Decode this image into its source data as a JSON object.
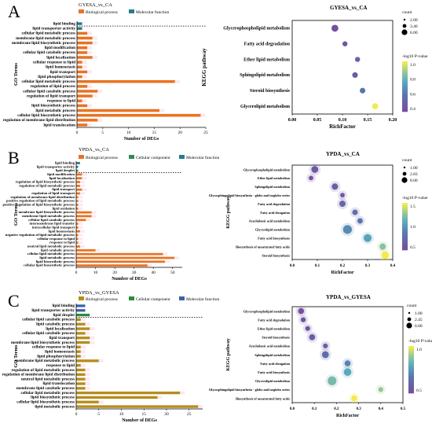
{
  "panels": [
    {
      "letter": "A",
      "go": {
        "title": "GYESA_vs_CA",
        "ylabel": "GO Terms",
        "xlabel": "Number of DEGs",
        "legend": [
          {
            "name": "Biological process",
            "color": "#E8731F"
          },
          {
            "name": "Molecular function",
            "color": "#2A7A8C"
          }
        ],
        "xlim": [
          0,
          25
        ],
        "xticks": [
          0,
          5,
          10,
          15,
          20,
          25
        ],
        "dashed_after": 1
      },
      "kegg": {
        "title": "GYESA_vs_CA",
        "xlabel": "RichFactor",
        "ylabel": "KEGG pathway",
        "xlim": [
          0,
          0.2
        ],
        "xticks": [
          "0.00",
          "0.05",
          "0.10",
          "0.15",
          "0.20"
        ],
        "count_title": "count",
        "count_levels": [
          "2.00",
          "3.46",
          "6.00"
        ],
        "pval_title": "-log10 P-value",
        "pval_ticks": [
          "1.0",
          "0.8",
          "0.6",
          "0.4"
        ]
      }
    },
    {
      "letter": "B",
      "go": {
        "title": "YPDA_vs_CA",
        "ylabel": "GO Terms",
        "xlabel": "Number of DEGs",
        "legend": [
          {
            "name": "Biological process",
            "color": "#E8731F"
          },
          {
            "name": "Cellular component",
            "color": "#2C8C5A"
          },
          {
            "name": "Molecular function",
            "color": "#2A7A8C"
          }
        ],
        "xlim": [
          0,
          55
        ],
        "xticks": [
          0,
          10,
          20,
          30,
          40,
          50
        ],
        "dashed_after": 3
      },
      "kegg": {
        "title": "YPDA_vs_CA",
        "xlabel": "RichFactor",
        "ylabel": "KEGG pathway",
        "xlim": [
          0,
          0.4
        ],
        "xticks": [
          "0.0",
          "0.1",
          "0.2",
          "0.3",
          "0.4"
        ],
        "count_title": "count",
        "count_levels": [
          "1.00",
          "2.83",
          "8.00"
        ],
        "pval_title": "-log10 P-value",
        "pval_ticks": [
          "1.5",
          "1.0",
          "0.5"
        ]
      }
    },
    {
      "letter": "C",
      "go": {
        "title": "YPDA_vs_GYESA",
        "ylabel": "GO Terms",
        "xlabel": "Number of DEGs",
        "legend": [
          {
            "name": "Biological process",
            "color": "#B38E1A"
          },
          {
            "name": "Cellular component",
            "color": "#2C8C3A"
          },
          {
            "name": "Molecular function",
            "color": "#3A62A8"
          }
        ],
        "xlim": [
          0,
          28
        ],
        "xticks": [
          0,
          5,
          10,
          15,
          20,
          25
        ],
        "dashed_after": 3
      },
      "kegg": {
        "title": "YPDA_vs_GYESA",
        "xlabel": "RichFactor",
        "ylabel": "KEGG pathway",
        "xlim": [
          0,
          0.5
        ],
        "xticks": [
          "0.0",
          "0.1",
          "0.2",
          "0.3",
          "0.4",
          "0.5"
        ],
        "count_title": "count",
        "count_levels": [
          "1.00",
          "2.45",
          "6.00"
        ],
        "pval_title": "-log10 P-value",
        "pval_ticks": [
          "1.0",
          "0.5"
        ]
      }
    }
  ],
  "chart_data": [
    {
      "type": "bar",
      "title": "GYESA_vs_CA",
      "xlabel": "Number of DEGs",
      "ylabel": "GO Terms",
      "xlim": [
        0,
        25
      ],
      "categories": [
        "lipid binding",
        "lipid transporter activity",
        "cellular lipid metabolic process",
        "membrane lipid metabolic process",
        "membrane lipid biosynthetic process",
        "lipid modification",
        "cellular lipid catabolic process",
        "lipid localization",
        "cellular response to lipid",
        "lipid homeostasis",
        "lipid transport",
        "lipid phosphorylation",
        "cellular lipid metabolic process",
        "regulation of lipid process",
        "cellular lipid catabolic process",
        "regulation of lipid transport",
        "response to lipid",
        "lipid biosynthetic process",
        "lipid metabolic process",
        "cellular lipid biosynthetic process",
        "regulation of membrane lipid distribution",
        "lipid translocation"
      ],
      "values": [
        1,
        1,
        2,
        3,
        3,
        2,
        2,
        3,
        1,
        1,
        2,
        1,
        19,
        2,
        4,
        3,
        1,
        2,
        16,
        24,
        4,
        2
      ],
      "groups": [
        "Molecular function",
        "Molecular function",
        "Biological process",
        "Biological process",
        "Biological process",
        "Biological process",
        "Biological process",
        "Biological process",
        "Biological process",
        "Biological process",
        "Biological process",
        "Biological process",
        "Biological process",
        "Biological process",
        "Biological process",
        "Biological process",
        "Biological process",
        "Biological process",
        "Biological process",
        "Biological process",
        "Biological process",
        "Biological process"
      ]
    },
    {
      "type": "scatter",
      "title": "GYESA_vs_CA",
      "xlabel": "RichFactor",
      "ylabel": "KEGG pathway",
      "xlim": [
        0,
        0.2
      ],
      "categories": [
        "Glycerophospholipid metabolism",
        "Fatty acid degradation",
        "Ether lipid metabolism",
        "Sphingolipid metabolism",
        "Steroid biosynthesis",
        "Glycerolipid metabolism"
      ],
      "x": [
        0.085,
        0.105,
        0.13,
        0.125,
        0.14,
        0.165
      ],
      "count": [
        6,
        2,
        2,
        3,
        3,
        4
      ],
      "neg_log10_p": [
        0.3,
        0.35,
        0.45,
        0.4,
        0.6,
        1.2
      ]
    },
    {
      "type": "bar",
      "title": "YPDA_vs_CA",
      "xlabel": "Number of DEGs",
      "ylabel": "GO Terms",
      "xlim": [
        0,
        55
      ],
      "categories": [
        "lipid binding",
        "lipid transporter activity",
        "lipid droplet",
        "lipid modification",
        "lipid localization",
        "regulation of lipid biosynthetic process",
        "regulation of lipid metabolic process",
        "lipid transport",
        "regulation of lipid transport",
        "regulation of membrane lipid distribution",
        "positive regulation of lipid metabolic process",
        "positive regulation of lipid biosynthetic process",
        "lipid oxidation",
        "membrane lipid biosynthetic process",
        "membrane lipid metabolic process",
        "cellular lipid catabolic process",
        "intermembrane lipid transfer",
        "intracellular lipid transport",
        "lipid homeostasis",
        "negative regulation of lipid metabolic process",
        "cellular response to lipid",
        "response to lipid",
        "neutral lipid metabolic process",
        "lipid catabolic process",
        "cellular lipid metabolic process",
        "lipid metabolic process",
        "lipid biosynthetic process",
        "cellular lipid biosynthetic process"
      ],
      "values": [
        2,
        1,
        1,
        3,
        3,
        2,
        2,
        3,
        2,
        1,
        1,
        1,
        1,
        8,
        8,
        5,
        1,
        1,
        2,
        1,
        1,
        1,
        2,
        10,
        45,
        51,
        46,
        37
      ],
      "groups": [
        "Molecular function",
        "Molecular function",
        "Cellular component",
        "Biological process",
        "Biological process",
        "Biological process",
        "Biological process",
        "Biological process",
        "Biological process",
        "Biological process",
        "Biological process",
        "Biological process",
        "Biological process",
        "Biological process",
        "Biological process",
        "Biological process",
        "Biological process",
        "Biological process",
        "Biological process",
        "Biological process",
        "Biological process",
        "Biological process",
        "Biological process",
        "Biological process",
        "Biological process",
        "Biological process",
        "Biological process",
        "Biological process"
      ]
    },
    {
      "type": "scatter",
      "title": "YPDA_vs_CA",
      "xlabel": "RichFactor",
      "ylabel": "KEGG pathway",
      "xlim": [
        0,
        0.4
      ],
      "categories": [
        "Glycerophospholipid metabolism",
        "Ether lipid metabolism",
        "Sphingolipid metabolism",
        "Glycosphingolipid biosynthesis - globo and isoglobo series",
        "Fatty acid degradation",
        "Fatty acid elongation",
        "Arachidonic acid metabolism",
        "Glycerolipid metabolism",
        "Fatty acid biosynthesis",
        "Biosynthesis of unsaturated fatty acids",
        "Steroid biosynthesis"
      ],
      "x": [
        0.09,
        0.075,
        0.17,
        0.2,
        0.2,
        0.25,
        0.27,
        0.22,
        0.3,
        0.36,
        0.37
      ],
      "count": [
        4,
        1,
        3,
        1,
        3,
        2,
        2,
        8,
        6,
        3,
        5
      ],
      "neg_log10_p": [
        0.2,
        0.1,
        0.3,
        0.2,
        0.4,
        0.5,
        0.6,
        0.8,
        1.0,
        1.3,
        1.7
      ]
    },
    {
      "type": "bar",
      "title": "YPDA_vs_GYESA",
      "xlabel": "Number of DEGs",
      "ylabel": "GO Terms",
      "xlim": [
        0,
        28
      ],
      "categories": [
        "lipid binding",
        "lipid transporter activity",
        "lipid droplet",
        "cellular lipid catabolic process",
        "lipid catabolic process",
        "lipid localization",
        "cellular lipid catabolic process",
        "lipid transport",
        "membrane lipid biosynthetic process",
        "cellular response to lipid",
        "lipid homeostasis",
        "lipid phosphorylation",
        "membrane lipid metabolic process",
        "response to lipid",
        "regulation of lipid metabolic process",
        "regulation of membrane lipid distribution",
        "neutral lipid metabolic process",
        "lipid translocation",
        "membrane lipid catabolic process",
        "cellular lipid metabolic process",
        "lipid biosynthetic process",
        "cellular lipid biosynthetic process",
        "lipid metabolic process"
      ],
      "values": [
        2,
        2,
        3,
        1,
        2,
        3,
        2,
        3,
        3,
        1,
        1,
        1,
        5,
        1,
        2,
        2,
        2,
        2,
        2,
        23,
        18,
        5,
        27
      ],
      "groups": [
        "Molecular function",
        "Molecular function",
        "Cellular component",
        "Biological process",
        "Biological process",
        "Biological process",
        "Biological process",
        "Biological process",
        "Biological process",
        "Biological process",
        "Biological process",
        "Biological process",
        "Biological process",
        "Biological process",
        "Biological process",
        "Biological process",
        "Biological process",
        "Biological process",
        "Biological process",
        "Biological process",
        "Biological process",
        "Biological process",
        "Biological process"
      ]
    },
    {
      "type": "scatter",
      "title": "YPDA_vs_GYESA",
      "xlabel": "RichFactor",
      "ylabel": "KEGG pathway",
      "xlim": [
        0,
        0.5
      ],
      "categories": [
        "Glycerophospholipid metabolism",
        "Fatty acid degradation",
        "Ether lipid metabolism",
        "Steroid biosynthesis",
        "Arachidonic acid metabolism",
        "Sphingolipid metabolism",
        "Fatty acid elongation",
        "Fatty acid biosynthesis",
        "Glycerolipid metabolism",
        "Glycosphingolipid biosynthesis - globo and isoglobo series",
        "Biosynthesis of unsaturated fatty acids"
      ],
      "x": [
        0.04,
        0.05,
        0.07,
        0.09,
        0.15,
        0.15,
        0.25,
        0.25,
        0.18,
        0.4,
        0.28
      ],
      "count": [
        2,
        1,
        1,
        2,
        1,
        3,
        2,
        4,
        6,
        1,
        2
      ],
      "neg_log10_p": [
        0.2,
        0.2,
        0.25,
        0.3,
        0.35,
        0.45,
        0.6,
        0.8,
        0.9,
        1.0,
        1.2
      ]
    }
  ]
}
